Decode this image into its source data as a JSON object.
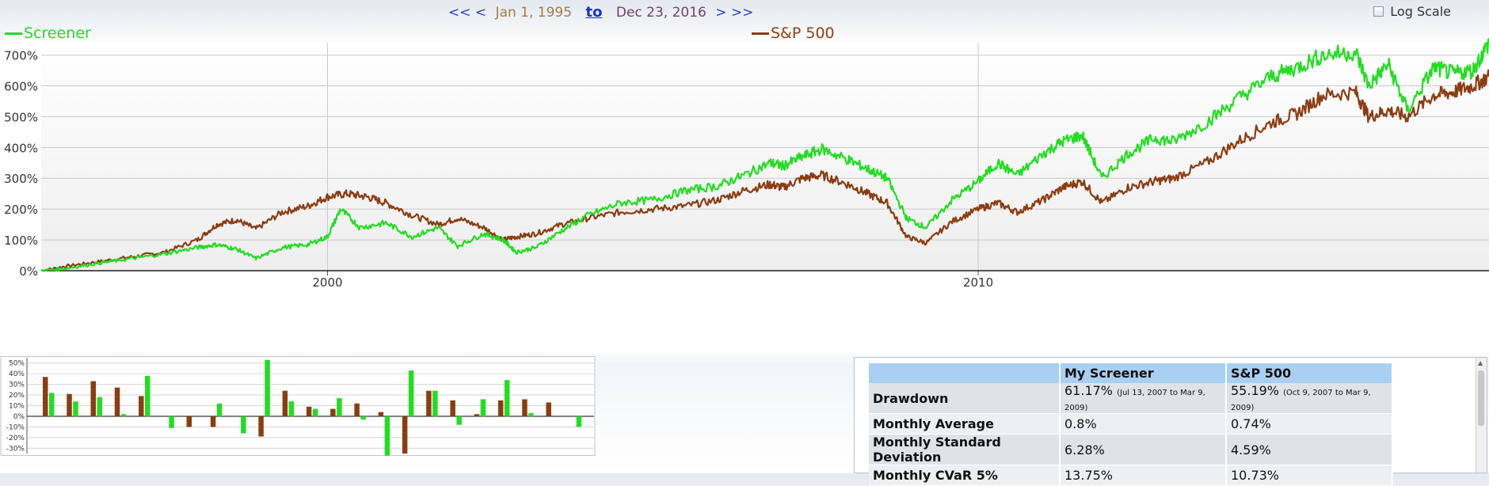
{
  "nav": {
    "first": "<<",
    "prev": "<",
    "start_date": "Jan 1, 1995",
    "to": "to",
    "end_date": "Dec 23, 2016",
    "next": ">",
    "last": ">>"
  },
  "log_scale": {
    "label": "Log Scale",
    "checked": false
  },
  "colors": {
    "screener": "#22dd22",
    "sp500": "#8b3d12"
  },
  "chart_data": [
    {
      "type": "line",
      "x_unit": "year",
      "xlim": [
        1995.6,
        2017.85
      ],
      "ylim": [
        0,
        740
      ],
      "y_unit": "%",
      "y_ticks": [
        0,
        100,
        200,
        300,
        400,
        500,
        600,
        700
      ],
      "y_tick_labels": [
        "0%",
        "100%",
        "200%",
        "300%",
        "400%",
        "500%",
        "600%",
        "700%"
      ],
      "x_ticks": [
        2000,
        2010
      ],
      "x_tick_labels": [
        "2000",
        "2010"
      ],
      "grid": true,
      "legend_position": "top",
      "series": [
        {
          "name": "Screener",
          "x": [
            1995.6,
            1996.0,
            1996.5,
            1997.0,
            1997.5,
            1998.0,
            1998.3,
            1998.6,
            1998.9,
            1999.3,
            1999.7,
            2000.0,
            2000.2,
            2000.5,
            2000.9,
            2001.3,
            2001.7,
            2002.0,
            2002.4,
            2002.7,
            2002.9,
            2003.2,
            2003.6,
            2004.0,
            2004.5,
            2005.0,
            2005.5,
            2006.0,
            2006.4,
            2006.8,
            2007.0,
            2007.3,
            2007.6,
            2008.0,
            2008.3,
            2008.6,
            2008.9,
            2009.2,
            2009.6,
            2010.0,
            2010.3,
            2010.6,
            2011.0,
            2011.3,
            2011.6,
            2011.9,
            2012.3,
            2012.7,
            2013.0,
            2013.5,
            2014.0,
            2014.5,
            2014.9,
            2015.3,
            2015.8,
            2016.0,
            2016.3,
            2016.6,
            2017.0,
            2017.3,
            2017.6,
            2017.85
          ],
          "y": [
            0,
            8,
            25,
            40,
            55,
            75,
            85,
            70,
            40,
            75,
            85,
            110,
            200,
            140,
            155,
            110,
            140,
            80,
            120,
            100,
            60,
            75,
            130,
            180,
            220,
            230,
            260,
            275,
            310,
            350,
            340,
            370,
            395,
            360,
            330,
            300,
            170,
            140,
            230,
            290,
            350,
            310,
            380,
            420,
            440,
            300,
            380,
            430,
            420,
            480,
            560,
            630,
            660,
            700,
            710,
            600,
            670,
            520,
            660,
            640,
            650,
            740
          ]
        },
        {
          "name": "S&P 500",
          "x": [
            1995.6,
            1996.0,
            1996.5,
            1997.0,
            1997.5,
            1998.0,
            1998.3,
            1998.6,
            1998.9,
            1999.3,
            1999.7,
            2000.0,
            2000.3,
            2000.6,
            2000.9,
            2001.3,
            2001.7,
            2002.0,
            2002.4,
            2002.7,
            2002.9,
            2003.2,
            2003.6,
            2004.0,
            2004.5,
            2005.0,
            2005.5,
            2006.0,
            2006.4,
            2006.8,
            2007.0,
            2007.3,
            2007.6,
            2008.0,
            2008.3,
            2008.6,
            2008.9,
            2009.2,
            2009.6,
            2010.0,
            2010.3,
            2010.6,
            2011.0,
            2011.3,
            2011.6,
            2011.9,
            2012.3,
            2012.7,
            2013.0,
            2013.5,
            2014.0,
            2014.5,
            2014.9,
            2015.3,
            2015.8,
            2016.0,
            2016.3,
            2016.6,
            2017.0,
            2017.3,
            2017.6,
            2017.85
          ],
          "y": [
            0,
            15,
            30,
            45,
            60,
            100,
            150,
            165,
            135,
            190,
            210,
            240,
            250,
            240,
            220,
            180,
            150,
            170,
            140,
            100,
            110,
            120,
            150,
            170,
            190,
            200,
            210,
            230,
            260,
            280,
            270,
            300,
            310,
            280,
            250,
            220,
            110,
            90,
            160,
            200,
            220,
            190,
            230,
            270,
            290,
            220,
            270,
            290,
            300,
            350,
            420,
            480,
            510,
            570,
            580,
            500,
            520,
            500,
            570,
            580,
            600,
            630
          ]
        }
      ]
    },
    {
      "type": "bar",
      "ylim": [
        -35,
        55
      ],
      "y_ticks": [
        -30,
        -20,
        -10,
        0,
        10,
        20,
        30,
        40,
        50
      ],
      "y_tick_labels": [
        "-30%",
        "-20%",
        "-10%",
        "0%",
        "10%",
        "20%",
        "30%",
        "40%",
        "50%"
      ],
      "grid": true,
      "series": [
        {
          "name": "S&P 500",
          "values": [
            37,
            21,
            33,
            27,
            19,
            0,
            -10,
            -10,
            0,
            -19,
            24,
            9,
            7,
            12,
            4,
            -35,
            24,
            15,
            2,
            15,
            16,
            13,
            0
          ]
        },
        {
          "name": "Screener",
          "values": [
            22,
            14,
            18,
            2,
            38,
            -11,
            0,
            12,
            -16,
            53,
            14,
            7,
            17,
            -3,
            -37,
            43,
            24,
            -8,
            16,
            34,
            3,
            0,
            -10
          ]
        }
      ]
    }
  ],
  "stats_table": {
    "headers": [
      "",
      "My Screener",
      "S&P 500"
    ],
    "rows": [
      {
        "label": "Drawdown",
        "screener": "61.17%",
        "screener_range": "(Jul 13, 2007 to Mar 9, 2009)",
        "sp500": "55.19%",
        "sp500_range": "(Oct 9, 2007 to Mar 9, 2009)"
      },
      {
        "label": "Monthly Average",
        "screener": "0.8%",
        "screener_range": "",
        "sp500": "0.74%",
        "sp500_range": ""
      },
      {
        "label": "Monthly Standard Deviation",
        "screener": "6.28%",
        "screener_range": "",
        "sp500": "4.59%",
        "sp500_range": ""
      },
      {
        "label": "Monthly CVaR 5%",
        "screener": "13.75%",
        "screener_range": "",
        "sp500": "10.73%",
        "sp500_range": ""
      }
    ]
  }
}
